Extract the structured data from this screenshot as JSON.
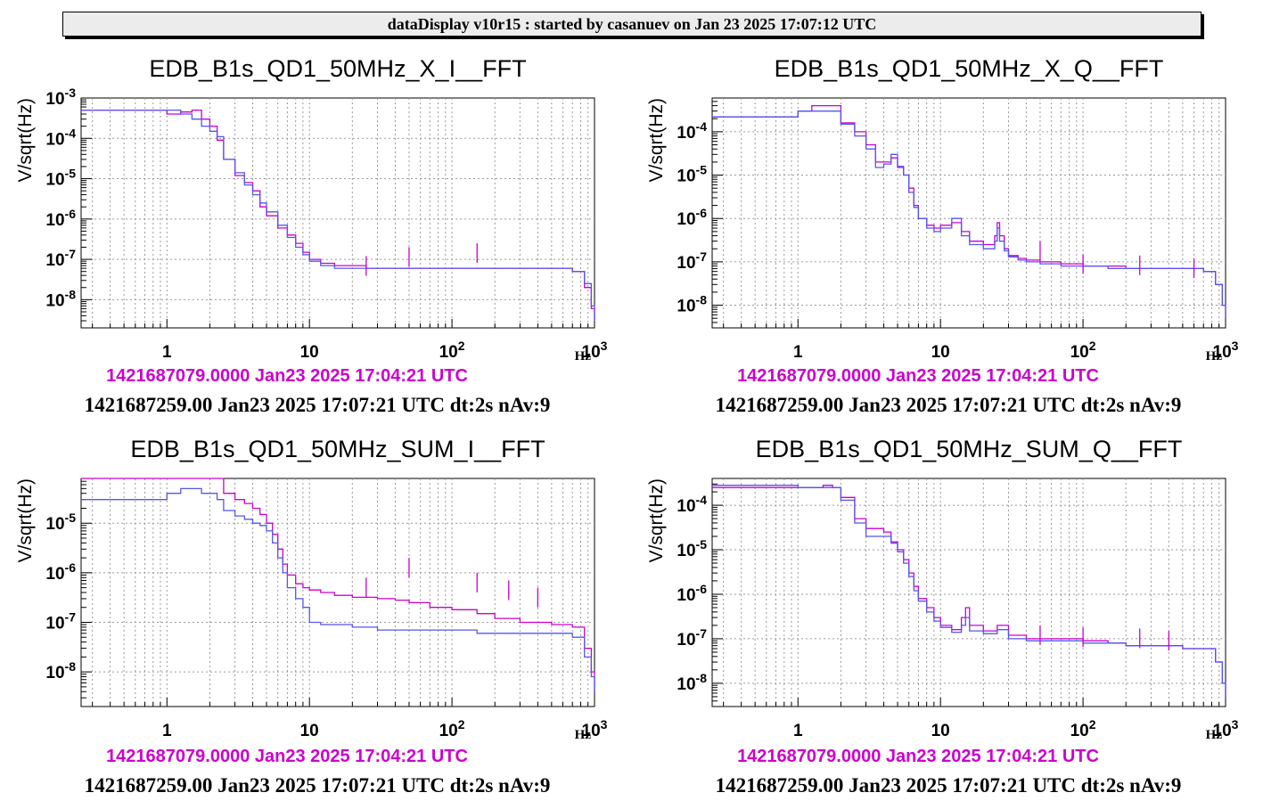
{
  "banner": "dataDisplay v10r15 : started by casanuev on Jan 23 2025 17:07:12 UTC",
  "colors": {
    "reference": "#cc00cc",
    "current": "#5555ee"
  },
  "chart_data": [
    {
      "type": "line",
      "title": "EDB_B1s_QD1_50MHz_X_I__FFT",
      "ylabel": "V/sqrt(Hz)",
      "xlabel": "Hz",
      "x_scale": "log",
      "y_scale": "log",
      "xlim": [
        0.25,
        1000
      ],
      "ylim": [
        2e-09,
        0.001
      ],
      "x_ticks": [
        "1",
        "10",
        "10^2",
        "10^3"
      ],
      "y_ticks": [
        "10^-8",
        "10^-7",
        "10^-6",
        "10^-5",
        "10^-4",
        "10^-3"
      ],
      "grid": true,
      "reference_label": "1421687079.0000 Jan23 2025 17:04:21 UTC",
      "info": "1421687259.00 Jan23 2025 17:07:21 UTC dt:2s nAv:9",
      "series": [
        {
          "color": "#cc00cc",
          "x": [
            0.25,
            0.5,
            0.75,
            1,
            1.25,
            1.5,
            1.75,
            2,
            2.25,
            2.5,
            3,
            3.5,
            4,
            4.5,
            5,
            6,
            7,
            8,
            9,
            10,
            12,
            15,
            20,
            25,
            30,
            40,
            50,
            70,
            100,
            150,
            200,
            300,
            500,
            700,
            850,
            950,
            1000
          ],
          "y": [
            0.0005,
            0.0005,
            0.0005,
            0.0004,
            0.00045,
            0.0005,
            0.0003,
            0.0002,
            9e-05,
            3e-05,
            1.2e-05,
            8e-06,
            5e-06,
            2e-06,
            1.2e-06,
            6e-07,
            4e-07,
            2.5e-07,
            1.5e-07,
            1e-07,
            8e-08,
            7e-08,
            7e-08,
            6e-08,
            6e-08,
            6e-08,
            6e-08,
            6e-08,
            6e-08,
            6e-08,
            6e-08,
            6e-08,
            6e-08,
            5e-08,
            2e-08,
            6e-09,
            3e-09
          ]
        },
        {
          "color": "#5555ee",
          "x": [
            0.25,
            0.5,
            0.75,
            1,
            1.25,
            1.5,
            1.75,
            2,
            2.25,
            2.5,
            3,
            3.5,
            4,
            4.5,
            5,
            6,
            7,
            8,
            9,
            10,
            12,
            15,
            20,
            25,
            30,
            40,
            50,
            70,
            100,
            150,
            200,
            300,
            500,
            700,
            850,
            950,
            1000
          ],
          "y": [
            0.0005,
            0.0005,
            0.0005,
            0.0005,
            0.0004,
            0.0003,
            0.0002,
            0.00015,
            0.00011,
            3e-05,
            1.4e-05,
            7e-06,
            4e-06,
            2.5e-06,
            1.5e-06,
            7e-07,
            3.5e-07,
            2e-07,
            1.3e-07,
            9e-08,
            7e-08,
            6e-08,
            6e-08,
            6e-08,
            6e-08,
            6e-08,
            6e-08,
            6e-08,
            6e-08,
            6e-08,
            6e-08,
            6e-08,
            6e-08,
            5e-08,
            2.5e-08,
            7e-09,
            3e-09
          ]
        }
      ],
      "peaks": [
        {
          "x": 25,
          "y": 1.2e-07
        },
        {
          "x": 50,
          "y": 2e-07
        },
        {
          "x": 150,
          "y": 2.5e-07
        }
      ]
    },
    {
      "type": "line",
      "title": "EDB_B1s_QD1_50MHz_X_Q__FFT",
      "ylabel": "V/sqrt(Hz)",
      "xlabel": "Hz",
      "x_scale": "log",
      "y_scale": "log",
      "xlim": [
        0.25,
        1000
      ],
      "ylim": [
        3e-09,
        0.0006
      ],
      "x_ticks": [
        "1",
        "10",
        "10^2",
        "10^3"
      ],
      "y_ticks": [
        "10^-8",
        "10^-7",
        "10^-6",
        "10^-5",
        "10^-4"
      ],
      "grid": true,
      "reference_label": "1421687079.0000 Jan23 2025 17:04:21 UTC",
      "info": "1421687259.00 Jan23 2025 17:07:21 UTC dt:2s nAv:9",
      "series": [
        {
          "color": "#cc00cc",
          "x": [
            0.25,
            0.5,
            0.75,
            1,
            1.25,
            1.5,
            1.75,
            2,
            2.5,
            3,
            3.5,
            4,
            4.5,
            5,
            5.5,
            6,
            6.5,
            7,
            8,
            9,
            10,
            12,
            14,
            16,
            20,
            24,
            25,
            26,
            28,
            30,
            35,
            40,
            50,
            70,
            100,
            150,
            200,
            300,
            500,
            700,
            850,
            950,
            1000
          ],
          "y": [
            0.00022,
            0.00022,
            0.00022,
            0.0003,
            0.0004,
            0.0004,
            0.0004,
            0.00016,
            0.0001,
            5e-05,
            2e-05,
            2e-05,
            2.5e-05,
            1.5e-05,
            1e-05,
            5e-06,
            2e-06,
            1e-06,
            7e-07,
            6e-07,
            7e-07,
            8e-07,
            5e-07,
            3e-07,
            2.5e-07,
            4e-07,
            8e-07,
            4e-07,
            2e-07,
            1.4e-07,
            1.2e-07,
            1.1e-07,
            1e-07,
            9e-08,
            8e-08,
            8e-08,
            7e-08,
            7e-08,
            7e-08,
            6e-08,
            3e-08,
            1e-08,
            5e-09
          ]
        },
        {
          "color": "#5555ee",
          "x": [
            0.25,
            0.5,
            0.75,
            1,
            1.25,
            1.5,
            1.75,
            2,
            2.5,
            3,
            3.5,
            4,
            4.5,
            5,
            5.5,
            6,
            6.5,
            7,
            8,
            9,
            10,
            12,
            14,
            16,
            20,
            24,
            25,
            26,
            28,
            30,
            35,
            40,
            50,
            70,
            100,
            150,
            200,
            300,
            500,
            700,
            850,
            950,
            1000
          ],
          "y": [
            0.00022,
            0.00022,
            0.00022,
            0.0003,
            0.0003,
            0.0003,
            0.0003,
            0.00015,
            8e-05,
            4e-05,
            1.5e-05,
            1.8e-05,
            3e-05,
            1.6e-05,
            1e-05,
            4e-06,
            1.8e-06,
            1e-06,
            6e-07,
            5e-07,
            6e-07,
            1e-06,
            4e-07,
            2.5e-07,
            2e-07,
            3e-07,
            6e-07,
            3e-07,
            1.8e-07,
            1.3e-07,
            1.1e-07,
            1e-07,
            9e-08,
            8e-08,
            8e-08,
            7e-08,
            7e-08,
            7e-08,
            7e-08,
            6e-08,
            3e-08,
            1e-08,
            5e-09
          ]
        }
      ],
      "peaks": [
        {
          "x": 50,
          "y": 3e-07
        },
        {
          "x": 100,
          "y": 1.5e-07
        },
        {
          "x": 250,
          "y": 1.4e-07
        },
        {
          "x": 600,
          "y": 1.2e-07
        }
      ]
    },
    {
      "type": "line",
      "title": "EDB_B1s_QD1_50MHz_SUM_I__FFT",
      "ylabel": "V/sqrt(Hz)",
      "xlabel": "Hz",
      "x_scale": "log",
      "y_scale": "log",
      "xlim": [
        0.25,
        1000
      ],
      "ylim": [
        2e-09,
        8e-05
      ],
      "x_ticks": [
        "1",
        "10",
        "10^2",
        "10^3"
      ],
      "y_ticks": [
        "10^-8",
        "10^-7",
        "10^-6",
        "10^-5"
      ],
      "grid": true,
      "reference_label": "1421687079.0000 Jan23 2025 17:04:21 UTC",
      "info": "1421687259.00 Jan23 2025 17:07:21 UTC dt:2s nAv:9",
      "series": [
        {
          "color": "#cc00cc",
          "x": [
            0.25,
            0.5,
            0.75,
            1,
            1.25,
            1.5,
            1.75,
            2,
            2.25,
            2.5,
            3,
            3.5,
            4,
            4.5,
            5,
            5.5,
            6,
            6.5,
            7,
            8,
            9,
            10,
            12,
            15,
            20,
            30,
            40,
            50,
            70,
            100,
            150,
            200,
            300,
            500,
            700,
            850,
            950,
            1000
          ],
          "y": [
            8e-05,
            8e-05,
            8e-05,
            8e-05,
            8e-05,
            8e-05,
            8e-05,
            8e-05,
            8e-05,
            4e-05,
            3e-05,
            2.5e-05,
            2e-05,
            1.5e-05,
            1e-05,
            6e-06,
            3e-06,
            1.5e-06,
            9e-07,
            6e-07,
            5e-07,
            4.5e-07,
            4e-07,
            3.5e-07,
            3.2e-07,
            3e-07,
            2.8e-07,
            2.5e-07,
            2e-07,
            1.8e-07,
            1.5e-07,
            1.2e-07,
            1e-07,
            9e-08,
            8e-08,
            3e-08,
            1e-08,
            4e-09
          ]
        },
        {
          "color": "#5555ee",
          "x": [
            0.25,
            0.5,
            0.75,
            1,
            1.25,
            1.5,
            1.75,
            2,
            2.25,
            2.5,
            3,
            3.5,
            4,
            4.5,
            5,
            5.5,
            6,
            6.5,
            7,
            8,
            9,
            10,
            12,
            15,
            20,
            30,
            40,
            50,
            70,
            100,
            150,
            200,
            300,
            500,
            700,
            850,
            950,
            1000
          ],
          "y": [
            3e-05,
            3e-05,
            3e-05,
            4e-05,
            5e-05,
            5e-05,
            4e-05,
            4e-05,
            3e-05,
            1.8e-05,
            1.4e-05,
            1.2e-05,
            1e-05,
            9e-06,
            7e-06,
            4e-06,
            2e-06,
            1e-06,
            5e-07,
            3e-07,
            2e-07,
            1e-07,
            9e-08,
            9e-08,
            8e-08,
            7e-08,
            7e-08,
            7e-08,
            7e-08,
            7e-08,
            6e-08,
            6e-08,
            6e-08,
            6e-08,
            5e-08,
            2e-08,
            8e-09,
            4e-09
          ]
        }
      ],
      "peaks": [
        {
          "x": 25,
          "y": 8e-07
        },
        {
          "x": 50,
          "y": 2e-06
        },
        {
          "x": 150,
          "y": 1e-06
        },
        {
          "x": 250,
          "y": 7e-07
        },
        {
          "x": 400,
          "y": 5e-07
        }
      ]
    },
    {
      "type": "line",
      "title": "EDB_B1s_QD1_50MHz_SUM_Q__FFT",
      "ylabel": "V/sqrt(Hz)",
      "xlabel": "Hz",
      "x_scale": "log",
      "y_scale": "log",
      "xlim": [
        0.25,
        1000
      ],
      "ylim": [
        3e-09,
        0.0004
      ],
      "x_ticks": [
        "1",
        "10",
        "10^2",
        "10^3"
      ],
      "y_ticks": [
        "10^-8",
        "10^-7",
        "10^-6",
        "10^-5",
        "10^-4"
      ],
      "grid": true,
      "reference_label": "1421687079.0000 Jan23 2025 17:04:21 UTC",
      "info": "1421687259.00 Jan23 2025 17:07:21 UTC dt:2s nAv:9",
      "series": [
        {
          "color": "#cc00cc",
          "x": [
            0.25,
            0.5,
            0.75,
            1,
            1.25,
            1.5,
            1.75,
            2,
            2.5,
            3,
            3.5,
            4,
            4.5,
            5,
            5.5,
            6,
            6.5,
            7,
            8,
            9,
            10,
            12,
            14,
            15,
            16,
            20,
            25,
            30,
            40,
            50,
            70,
            100,
            150,
            200,
            300,
            500,
            700,
            850,
            950,
            1000
          ],
          "y": [
            0.00025,
            0.00025,
            0.00025,
            0.00025,
            0.00025,
            0.00028,
            0.00025,
            0.00015,
            5e-05,
            3e-05,
            3e-05,
            2.5e-05,
            1.5e-05,
            1e-05,
            6e-06,
            3e-06,
            1.5e-06,
            8e-07,
            5e-07,
            3e-07,
            2e-07,
            1.6e-07,
            3e-07,
            5e-07,
            2e-07,
            1.5e-07,
            2e-07,
            1.2e-07,
            1e-07,
            1e-07,
            1e-07,
            9e-08,
            8e-08,
            7e-08,
            7e-08,
            6e-08,
            6e-08,
            3e-08,
            1e-08,
            5e-09
          ]
        },
        {
          "color": "#5555ee",
          "x": [
            0.25,
            0.5,
            0.75,
            1,
            1.25,
            1.5,
            1.75,
            2,
            2.5,
            3,
            3.5,
            4,
            4.5,
            5,
            5.5,
            6,
            6.5,
            7,
            8,
            9,
            10,
            12,
            14,
            15,
            16,
            20,
            25,
            30,
            40,
            50,
            70,
            100,
            150,
            200,
            300,
            500,
            700,
            850,
            950,
            1000
          ],
          "y": [
            0.00028,
            0.00028,
            0.00028,
            0.00025,
            0.00025,
            0.00025,
            0.00025,
            0.00013,
            4e-05,
            2e-05,
            2e-05,
            2e-05,
            1.4e-05,
            9e-06,
            5e-06,
            2.5e-06,
            1.2e-06,
            7e-07,
            4e-07,
            2.5e-07,
            1.8e-07,
            1.4e-07,
            2e-07,
            3e-07,
            1.5e-07,
            1.3e-07,
            1.6e-07,
            1e-07,
            9e-08,
            9e-08,
            9e-08,
            8e-08,
            8e-08,
            7e-08,
            7e-08,
            6e-08,
            6e-08,
            3e-08,
            1e-08,
            5e-09
          ]
        }
      ],
      "peaks": [
        {
          "x": 50,
          "y": 2e-07
        },
        {
          "x": 100,
          "y": 1.8e-07
        },
        {
          "x": 250,
          "y": 1.7e-07
        },
        {
          "x": 400,
          "y": 1.5e-07
        }
      ]
    }
  ]
}
